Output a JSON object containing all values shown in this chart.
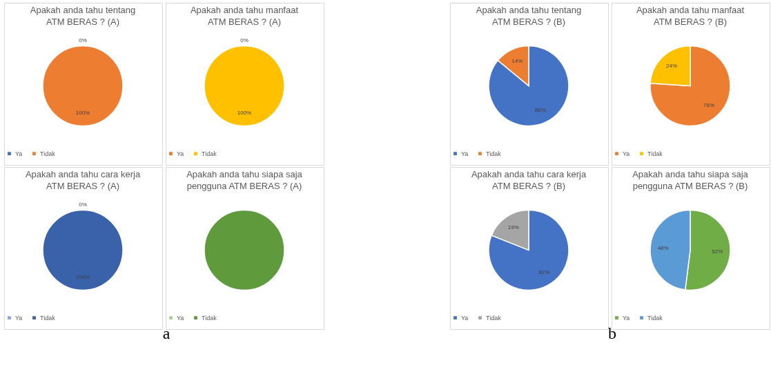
{
  "chart_data": [
    {
      "type": "pie",
      "title": "Apakah anda tahu tentang ATM BERAS ? (A)",
      "categories": [
        "Ya",
        "Tidak"
      ],
      "values": [
        0,
        100
      ],
      "colors": [
        "#4472c4",
        "#ed7d31"
      ],
      "value_labels": [
        "0%",
        "100%"
      ],
      "legend": "bottom"
    },
    {
      "type": "pie",
      "title": "Apakah anda tahu manfaat ATM BERAS ? (A)",
      "categories": [
        "Ya",
        "Tidak"
      ],
      "values": [
        0,
        100
      ],
      "colors": [
        "#ed7d31",
        "#ffc000"
      ],
      "value_labels": [
        "0%",
        "100%"
      ],
      "legend": "bottom"
    },
    {
      "type": "pie",
      "title": "Apakah anda tahu cara kerja ATM BERAS ? (A)",
      "categories": [
        "Ya",
        "Tidak"
      ],
      "values": [
        0,
        100
      ],
      "colors": [
        "#8fa4d8",
        "#3a62aa"
      ],
      "value_labels": [
        "0%",
        "100%"
      ],
      "legend": "bottom",
      "annotations": [
        "a"
      ]
    },
    {
      "type": "pie",
      "title": "Apakah anda tahu siapa saja pengguna ATM BERAS ? (A)",
      "categories": [
        "Ya",
        "Tidak"
      ],
      "values": [
        0,
        100
      ],
      "colors": [
        "#a9d18e",
        "#5f9a3c"
      ],
      "legend": "bottom"
    },
    {
      "type": "pie",
      "title": "Apakah anda tahu tentang ATM BERAS ? (B)",
      "categories": [
        "Ya",
        "Tidak"
      ],
      "values": [
        86,
        14
      ],
      "colors": [
        "#4472c4",
        "#ed7d31"
      ],
      "value_labels": [
        "86%",
        "14%"
      ],
      "legend": "bottom"
    },
    {
      "type": "pie",
      "title": "Apakah anda tahu manfaat ATM BERAS ? (B)",
      "categories": [
        "Ya",
        "Tidak"
      ],
      "values": [
        76,
        24
      ],
      "colors": [
        "#ed7d31",
        "#ffc000"
      ],
      "value_labels": [
        "76%",
        "24%"
      ],
      "legend": "bottom"
    },
    {
      "type": "pie",
      "title": "Apakah anda tahu cara kerja ATM BERAS ? (B)",
      "categories": [
        "Ya",
        "Tidak"
      ],
      "values": [
        81,
        19
      ],
      "colors": [
        "#4472c4",
        "#a5a5a5"
      ],
      "value_labels": [
        "81%",
        "19%"
      ],
      "legend": "bottom",
      "annotations": [
        "b"
      ]
    },
    {
      "type": "pie",
      "title": "Apakah anda tahu siapa saja pengguna ATM BERAS ? (B)",
      "categories": [
        "Ya",
        "Tidak"
      ],
      "values": [
        52,
        48
      ],
      "colors": [
        "#70ad47",
        "#5b9bd5"
      ],
      "value_labels": [
        "52%",
        "48%"
      ],
      "legend": "bottom"
    }
  ]
}
